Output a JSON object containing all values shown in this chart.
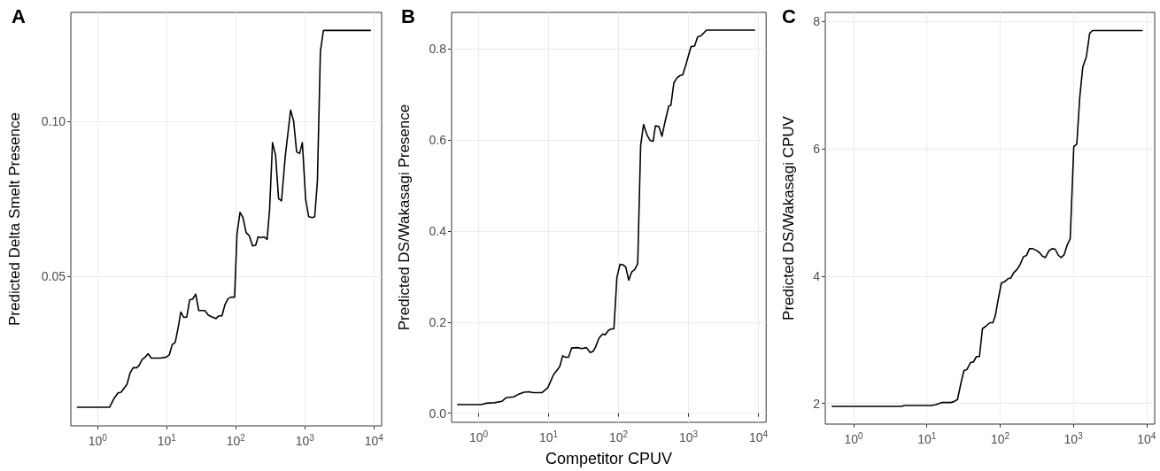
{
  "chart_data": [
    {
      "type": "line",
      "title": "A",
      "ylabel": "Predicted Delta Smelt Presence",
      "log": "x",
      "grid": true,
      "marker": "none",
      "line_style": "solid",
      "xlim": [
        0.41,
        12900
      ],
      "xticks": [
        {
          "value": 1,
          "label": "10$^{0}$"
        },
        {
          "value": 10,
          "label": "10$^{1}$"
        },
        {
          "value": 100,
          "label": "10$^{2}$"
        },
        {
          "value": 1000,
          "label": "10$^{3}$"
        },
        {
          "value": 10000,
          "label": "10$^{4}$"
        }
      ],
      "ylim": [
        0.002,
        0.135
      ],
      "yticks": [
        0.05,
        {
          "value": 0.1,
          "label": "0.10"
        }
      ],
      "series": [
        {
          "color": "#000000",
          "x": [
            0.51,
            1.49,
            1.75,
            1.98,
            2.19,
            2.67,
            2.95,
            3.27,
            3.68,
            3.98,
            4.41,
            4.88,
            5.4,
            5.97,
            8.06,
            9.84,
            10.9,
            12.0,
            13.3,
            14.7,
            16.0,
            17.6,
            19.5,
            21.5,
            23.8,
            26.3,
            29.1,
            35.6,
            40.1,
            44.4,
            51.5,
            57.0,
            63.1,
            69.7,
            77.1,
            85.2,
            96.1,
            104,
            115,
            127,
            141,
            156,
            175,
            194,
            210,
            232,
            257,
            284,
            308,
            340,
            376,
            416,
            459,
            518,
            621,
            687,
            759,
            839,
            918,
            1025,
            1133,
            1279,
            1386,
            1517,
            1676,
            1854,
            8870
          ],
          "values": [
            0.008,
            0.008,
            0.011,
            0.0126,
            0.0128,
            0.0154,
            0.019,
            0.0207,
            0.0207,
            0.0214,
            0.0233,
            0.0241,
            0.0252,
            0.0238,
            0.0238,
            0.0241,
            0.0248,
            0.0281,
            0.0289,
            0.0338,
            0.0386,
            0.0369,
            0.037,
            0.0425,
            0.0428,
            0.0444,
            0.0391,
            0.0391,
            0.0376,
            0.0371,
            0.0365,
            0.0374,
            0.0374,
            0.041,
            0.0429,
            0.0434,
            0.0434,
            0.0637,
            0.0707,
            0.069,
            0.0642,
            0.0632,
            0.0599,
            0.0601,
            0.0628,
            0.0625,
            0.0628,
            0.062,
            0.0715,
            0.0931,
            0.0891,
            0.0751,
            0.0744,
            0.0884,
            0.1036,
            0.1,
            0.0901,
            0.0896,
            0.0931,
            0.0749,
            0.0693,
            0.069,
            0.0693,
            0.0807,
            0.1225,
            0.1292,
            0.1292
          ]
        }
      ]
    },
    {
      "type": "line",
      "title": "B",
      "xlabel": "Competitor CPUV",
      "ylabel": "Predicted DS/Wakasagi Presence",
      "log": "x",
      "grid": true,
      "marker": "none",
      "line_style": "solid",
      "xlim": [
        0.41,
        12900
      ],
      "xticks": [
        {
          "value": 1,
          "label": "10$^{0}$"
        },
        {
          "value": 10,
          "label": "10$^{1}$"
        },
        {
          "value": 100,
          "label": "10$^{2}$"
        },
        {
          "value": 1000,
          "label": "10$^{3}$"
        },
        {
          "value": 10000,
          "label": "10$^{4}$"
        }
      ],
      "ylim": [
        -0.02,
        0.88
      ],
      "yticks": [
        {
          "value": 0,
          "label": "0.0"
        },
        0.2,
        0.4,
        0.6,
        0.8
      ],
      "series": [
        {
          "color": "#000000",
          "x": [
            0.5,
            1.08,
            1.31,
            1.68,
            2.14,
            2.48,
            3.17,
            3.66,
            4.46,
            5.26,
            5.97,
            8.01,
            9.74,
            11.8,
            14.4,
            15.9,
            17.5,
            19.3,
            21.3,
            25.9,
            29.9,
            34.7,
            39.4,
            43.4,
            46.5,
            52.7,
            59.3,
            64.1,
            72.1,
            79.4,
            85.9,
            94.8,
            105,
            115,
            127,
            140,
            154,
            170,
            188,
            207,
            228,
            257,
            283,
            312,
            337,
            379,
            418,
            461,
            524,
            561,
            618,
            682,
            752,
            828,
            914,
            1089,
            1224,
            1351,
            1518,
            1811,
            8810
          ],
          "values": [
            0.019,
            0.019,
            0.022,
            0.023,
            0.026,
            0.034,
            0.036,
            0.041,
            0.046,
            0.047,
            0.045,
            0.045,
            0.056,
            0.085,
            0.102,
            0.126,
            0.123,
            0.123,
            0.143,
            0.144,
            0.142,
            0.144,
            0.133,
            0.136,
            0.144,
            0.165,
            0.174,
            0.172,
            0.182,
            0.185,
            0.185,
            0.298,
            0.327,
            0.326,
            0.321,
            0.292,
            0.31,
            0.315,
            0.328,
            0.587,
            0.634,
            0.61,
            0.599,
            0.597,
            0.631,
            0.629,
            0.608,
            0.639,
            0.675,
            0.676,
            0.725,
            0.736,
            0.741,
            0.743,
            0.764,
            0.805,
            0.806,
            0.826,
            0.829,
            0.841,
            0.841
          ]
        }
      ]
    },
    {
      "type": "line",
      "title": "C",
      "ylabel": "Predicted DS/Wakasagi CPUV",
      "log": "x",
      "grid": true,
      "marker": "none",
      "line_style": "solid",
      "xlim": [
        0.41,
        12900
      ],
      "xticks": [
        {
          "value": 1,
          "label": "10$^{0}$"
        },
        {
          "value": 10,
          "label": "10$^{1}$"
        },
        {
          "value": 100,
          "label": "10$^{2}$"
        },
        {
          "value": 1000,
          "label": "10$^{3}$"
        },
        {
          "value": 10000,
          "label": "10$^{4}$"
        }
      ],
      "ylim": [
        1.675,
        8.14
      ],
      "yticks": [
        2,
        4,
        6,
        8
      ],
      "series": [
        {
          "color": "#000000",
          "x": [
            0.51,
            4.51,
            4.96,
            11.6,
            13.3,
            16.1,
            21.3,
            23.4,
            26.2,
            29.1,
            32.0,
            35.2,
            39.4,
            43.2,
            47.5,
            52.2,
            57.4,
            64.3,
            72.6,
            79.8,
            86.1,
            93.6,
            104,
            116,
            128,
            140,
            154,
            169,
            186,
            208,
            229,
            252,
            279,
            313,
            344,
            378,
            415,
            465,
            515,
            566,
            622,
            683,
            750,
            824,
            906,
            1014,
            1114,
            1224,
            1345,
            1507,
            1671,
            1836,
            8690
          ],
          "values": [
            1.953,
            1.953,
            1.967,
            1.967,
            1.981,
            2.014,
            2.014,
            2.028,
            2.061,
            2.311,
            2.513,
            2.532,
            2.641,
            2.65,
            2.735,
            2.735,
            3.173,
            3.215,
            3.267,
            3.267,
            3.38,
            3.616,
            3.889,
            3.912,
            3.959,
            3.969,
            4.054,
            4.1,
            4.171,
            4.303,
            4.322,
            4.43,
            4.43,
            4.402,
            4.369,
            4.313,
            4.289,
            4.397,
            4.43,
            4.421,
            4.327,
            4.289,
            4.336,
            4.487,
            4.586,
            6.032,
            6.069,
            6.809,
            7.28,
            7.445,
            7.812,
            7.855,
            7.855
          ]
        }
      ]
    }
  ]
}
